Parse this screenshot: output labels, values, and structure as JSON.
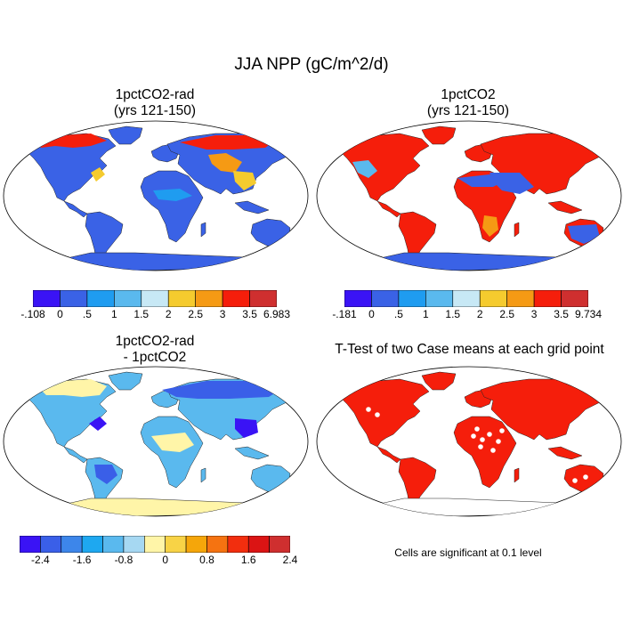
{
  "title": "JJA NPP (gC/m^2/d)",
  "panels": [
    {
      "title_line1": "1pctCO2-rad",
      "title_line2": "(yrs 121-150)"
    },
    {
      "title_line1": "1pctCO2",
      "title_line2": "(yrs 121-150)"
    },
    {
      "title_line1": "1pctCO2-rad",
      "title_line2": "- 1pctCO2"
    },
    {
      "title_line1": "T-Test of two Case means at each grid point",
      "title_line2": ""
    }
  ],
  "colorbars": [
    {
      "colors": [
        "#3a13f5",
        "#3a62e6",
        "#1f9cf0",
        "#5ab9ee",
        "#c7e8f5",
        "#f5cb2e",
        "#f59a14",
        "#f51e0b",
        "#cf2f2f"
      ],
      "labels": [
        "-.108",
        "0",
        ".5",
        "1",
        "1.5",
        "2",
        "2.5",
        "3",
        "3.5",
        "6.983"
      ]
    },
    {
      "colors": [
        "#3a13f5",
        "#3a62e6",
        "#1f9cf0",
        "#5ab9ee",
        "#c7e8f5",
        "#f5cb2e",
        "#f59a14",
        "#f51e0b",
        "#cf2f2f"
      ],
      "labels": [
        "-.181",
        "0",
        ".5",
        "1",
        "1.5",
        "2",
        "2.5",
        "3",
        "3.5",
        "9.734"
      ]
    },
    {
      "colors": [
        "#3a13f5",
        "#3a5fe8",
        "#3d86ea",
        "#1ea8f0",
        "#5ab9ee",
        "#a6d8f2",
        "#fff5a8",
        "#f8d346",
        "#f5a60a",
        "#f57311",
        "#f22e0e",
        "#db1414",
        "#cf2f2f"
      ],
      "labels": [
        "-2.4",
        "-1.6",
        "-0.8",
        "0",
        "0.8",
        "1.6",
        "2.4"
      ]
    }
  ],
  "footnote": "Cells are significant at 0.1 level",
  "colors": {
    "ocean": "#ffffff",
    "land_panel1": "#3a62e6",
    "land_panel2": "#f51e0b",
    "land_panel3": "#5ab9ee",
    "land_panel4": "#f51e0b",
    "antarctica_panel1": "#3a62e6",
    "antarctica_panel2": "#3a62e6",
    "antarctica_panel3": "#fff5a8"
  }
}
